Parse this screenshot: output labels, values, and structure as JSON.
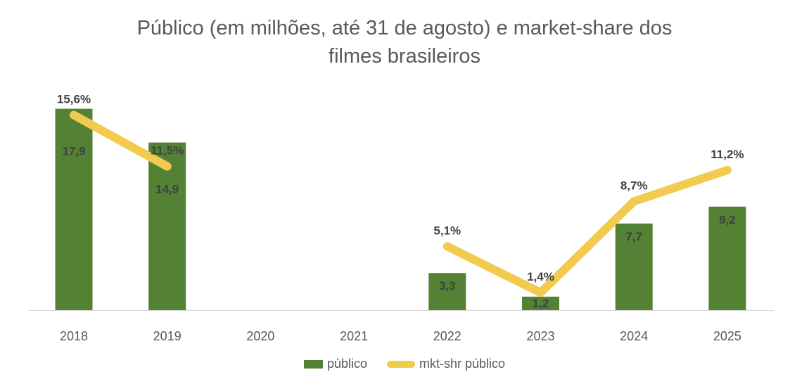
{
  "chart_data": {
    "type": "bar+line",
    "title": "Público (em milhões, até 31 de agosto) e market-share dos filmes brasileiros",
    "title_lines": [
      "Público (em milhões, até 31 de agosto) e market-share dos",
      "filmes brasileiros"
    ],
    "categories": [
      "2018",
      "2019",
      "2020",
      "2021",
      "2022",
      "2023",
      "2024",
      "2025"
    ],
    "series": [
      {
        "name": "público",
        "type": "bar",
        "axis": "primary",
        "color": "#548235",
        "values": [
          17.9,
          14.9,
          null,
          null,
          3.3,
          1.2,
          7.7,
          9.2
        ],
        "labels": [
          "17,9",
          "14,9",
          "",
          "",
          "3,3",
          "1,2",
          "7,7",
          "9,2"
        ]
      },
      {
        "name": "mkt-shr público",
        "type": "line",
        "axis": "secondary",
        "color": "#F2CA4E",
        "values": [
          15.6,
          11.5,
          null,
          null,
          5.1,
          1.4,
          8.7,
          11.2
        ],
        "labels": [
          "15,6%",
          "11,5%",
          "",
          "",
          "5,1%",
          "1,4%",
          "8,7%",
          "11,2%"
        ]
      }
    ],
    "ylim": [
      0,
      20
    ],
    "y2lim": [
      0,
      18
    ],
    "grid": false,
    "legend": "bottom"
  }
}
